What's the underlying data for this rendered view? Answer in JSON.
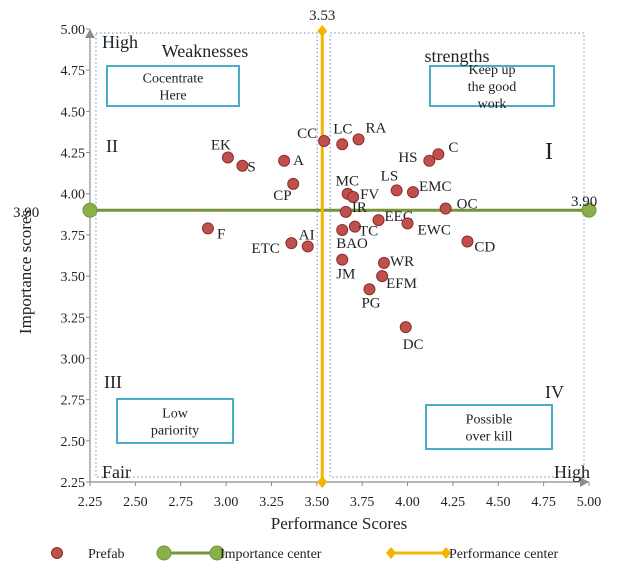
{
  "chart_data": {
    "type": "scatter",
    "xlabel": "Performance Scores",
    "ylabel": "Importance scores",
    "xlim": [
      2.25,
      5.0
    ],
    "ylim": [
      2.25,
      5.0
    ],
    "x_ticks": [
      "2.25",
      "2.50",
      "2.75",
      "3.00",
      "3.25",
      "3.50",
      "3.75",
      "4.00",
      "4.25",
      "4.50",
      "4.75",
      "5.00"
    ],
    "y_ticks": [
      "2.25",
      "2.50",
      "2.75",
      "3.00",
      "3.25",
      "3.50",
      "3.75",
      "4.00",
      "4.25",
      "4.50",
      "4.75",
      "5.00"
    ],
    "grid": false,
    "legend_position": "bottom",
    "colors": {
      "points": "#c0504d",
      "points_edge": "#8b2e2b",
      "importance_center": "#77933c",
      "importance_marker": "#8ab04a",
      "performance_center": "#f2b600",
      "quadrant_box_border": "#4bacc6",
      "dotted_border": "#7fa8d1",
      "axis_arrow": "#8c8c8c"
    },
    "series": [
      {
        "name": "Prefab",
        "points": [
          {
            "label": "EK",
            "x": 3.01,
            "y": 4.22
          },
          {
            "label": "S",
            "x": 3.09,
            "y": 4.17
          },
          {
            "label": "A",
            "x": 3.32,
            "y": 4.2
          },
          {
            "label": "CP",
            "x": 3.37,
            "y": 4.06
          },
          {
            "label": "F",
            "x": 2.9,
            "y": 3.79
          },
          {
            "label": "ETC",
            "x": 3.36,
            "y": 3.7
          },
          {
            "label": "AI",
            "x": 3.45,
            "y": 3.68
          },
          {
            "label": "CC",
            "x": 3.54,
            "y": 4.32
          },
          {
            "label": "LC",
            "x": 3.64,
            "y": 4.3
          },
          {
            "label": "RA",
            "x": 3.73,
            "y": 4.33
          },
          {
            "label": "MC",
            "x": 3.67,
            "y": 4.0
          },
          {
            "label": "FV",
            "x": 3.7,
            "y": 3.98
          },
          {
            "label": "IR",
            "x": 3.66,
            "y": 3.89
          },
          {
            "label": "BAO",
            "x": 3.64,
            "y": 3.78
          },
          {
            "label": "TC",
            "x": 3.71,
            "y": 3.8
          },
          {
            "label": "EEC",
            "x": 3.84,
            "y": 3.84
          },
          {
            "label": "LS",
            "x": 3.94,
            "y": 4.02
          },
          {
            "label": "EMC",
            "x": 4.03,
            "y": 4.01
          },
          {
            "label": "HS",
            "x": 4.12,
            "y": 4.2
          },
          {
            "label": "C",
            "x": 4.17,
            "y": 4.24
          },
          {
            "label": "OC",
            "x": 4.21,
            "y": 3.91
          },
          {
            "label": "EWC",
            "x": 4.0,
            "y": 3.82
          },
          {
            "label": "CD",
            "x": 4.33,
            "y": 3.71
          },
          {
            "label": "JM",
            "x": 3.64,
            "y": 3.6
          },
          {
            "label": "WR",
            "x": 3.87,
            "y": 3.58
          },
          {
            "label": "EFM",
            "x": 3.86,
            "y": 3.5
          },
          {
            "label": "PG",
            "x": 3.79,
            "y": 3.42
          },
          {
            "label": "DC",
            "x": 3.99,
            "y": 3.19
          }
        ]
      },
      {
        "name": "Importance center",
        "y": 3.9,
        "label": "3.90"
      },
      {
        "name": "Performance center",
        "x": 3.53,
        "label": "3.53"
      }
    ],
    "annotations": {
      "high_top_left": "High",
      "weaknesses": "Weaknesses",
      "strengths": "strengths",
      "quadrant_I": "I",
      "quadrant_II": "II",
      "quadrant_III": "III",
      "quadrant_IV": "IV",
      "fair": "Fair",
      "high_bottom_right": "High",
      "concentrate_box": [
        "Cocentrate",
        "Here"
      ],
      "keep_up_box": [
        "Keep up",
        "the good",
        "work"
      ],
      "low_priority_box": [
        "Low",
        "pariority"
      ],
      "overkill_box": [
        "Possible",
        "over kill"
      ]
    }
  }
}
